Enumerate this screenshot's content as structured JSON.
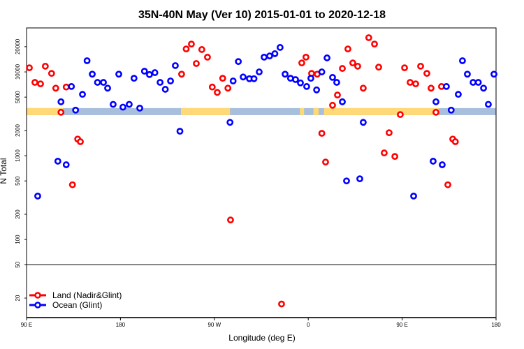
{
  "chart_data": {
    "type": "scatter",
    "title": "35N-40N May (Ver 10)   2015-01-01 to 2020-12-18",
    "xlabel": "Longitude (deg E)",
    "ylabel": "N Total",
    "y_scale": "log",
    "xlim_unwrapped_lon": [
      90,
      540
    ],
    "ylim": [
      11.7,
      33500
    ],
    "x_ticks": [
      {
        "lon": 90,
        "label": "90 E"
      },
      {
        "lon": 180,
        "label": "180"
      },
      {
        "lon": 270,
        "label": "90 W"
      },
      {
        "lon": 360,
        "label": "0"
      },
      {
        "lon": 450,
        "label": "90 E"
      },
      {
        "lon": 540,
        "label": "180"
      }
    ],
    "y_ticks": [
      {
        "value": 20000,
        "label": "20000"
      },
      {
        "value": 10000,
        "label": "10000"
      },
      {
        "value": 5000,
        "label": "5000"
      },
      {
        "value": 2000,
        "label": "2000"
      },
      {
        "value": 1000,
        "label": "1000"
      },
      {
        "value": 500,
        "label": "500"
      },
      {
        "value": 200,
        "label": "200"
      },
      {
        "value": 100,
        "label": "100"
      },
      {
        "value": 50,
        "label": "50"
      },
      {
        "value": 20,
        "label": "20"
      }
    ],
    "panel_break_value": 50,
    "grid": false,
    "legend_position": "bottom-left",
    "land_ocean_band": {
      "N_range": [
        3050,
        3700
      ],
      "ocean_color": "#a7bedc",
      "land_color": "#ffd877",
      "land_segments_lon": [
        [
          90,
          125
        ],
        [
          238,
          285
        ],
        [
          352,
          356
        ],
        [
          365,
          370
        ],
        [
          375,
          485
        ]
      ]
    },
    "series": [
      {
        "name": "Land (Nadir&Glint)",
        "color": "#ff0000",
        "points": [
          [
            92.7,
            11200
          ],
          [
            98,
            7500
          ],
          [
            103.4,
            7200
          ],
          [
            108,
            11700
          ],
          [
            114,
            9600
          ],
          [
            118,
            6400
          ],
          [
            123,
            3300
          ],
          [
            128,
            6600
          ],
          [
            134,
            450
          ],
          [
            139,
            1580
          ],
          [
            141.6,
            1470
          ],
          [
            238.6,
            9400
          ],
          [
            243,
            18800
          ],
          [
            248,
            21500
          ],
          [
            252.7,
            12600
          ],
          [
            258,
            18500
          ],
          [
            263.4,
            15000
          ],
          [
            268,
            6600
          ],
          [
            272.8,
            5700
          ],
          [
            278,
            8400
          ],
          [
            283,
            6400
          ],
          [
            285.5,
            171
          ],
          [
            334.4,
            17
          ],
          [
            353.8,
            12800
          ],
          [
            357.8,
            15000
          ],
          [
            363.2,
            9600
          ],
          [
            368.6,
            9400
          ],
          [
            373,
            1850
          ],
          [
            376.6,
            840
          ],
          [
            383.3,
            4000
          ],
          [
            388,
            5300
          ],
          [
            392.7,
            11000
          ],
          [
            398,
            18800
          ],
          [
            402.7,
            12800
          ],
          [
            407.4,
            11700
          ],
          [
            412.7,
            6400
          ],
          [
            418,
            25600
          ],
          [
            423.5,
            21500
          ],
          [
            427.5,
            11400
          ],
          [
            432.8,
            1080
          ],
          [
            437.5,
            1880
          ],
          [
            443,
            980
          ],
          [
            448.2,
            3100
          ],
          [
            452.3,
            11200
          ],
          [
            457.6,
            7500
          ],
          [
            463,
            7200
          ],
          [
            467.7,
            11700
          ],
          [
            473.7,
            9600
          ],
          [
            477.7,
            6400
          ],
          [
            482.4,
            3300
          ],
          [
            487.7,
            6700
          ],
          [
            493.8,
            450
          ],
          [
            498.5,
            1580
          ],
          [
            501,
            1470
          ]
        ]
      },
      {
        "name": "Ocean (Glint)",
        "color": "#0000ff",
        "points": [
          [
            100.7,
            330
          ],
          [
            120,
            860
          ],
          [
            123,
            4400
          ],
          [
            128,
            780
          ],
          [
            133,
            6700
          ],
          [
            137,
            3500
          ],
          [
            143.6,
            5400
          ],
          [
            148,
            13600
          ],
          [
            153,
            9400
          ],
          [
            158,
            7500
          ],
          [
            163.7,
            7500
          ],
          [
            167.7,
            6400
          ],
          [
            173,
            4100
          ],
          [
            178.4,
            9400
          ],
          [
            182.4,
            3800
          ],
          [
            188.4,
            4100
          ],
          [
            193,
            8400
          ],
          [
            198.5,
            3700
          ],
          [
            203,
            10200
          ],
          [
            207.8,
            9300
          ],
          [
            213,
            9800
          ],
          [
            218,
            7500
          ],
          [
            223,
            6200
          ],
          [
            228,
            7800
          ],
          [
            232.6,
            11900
          ],
          [
            237,
            1960
          ],
          [
            285,
            2500
          ],
          [
            288,
            7800
          ],
          [
            293,
            13300
          ],
          [
            297.6,
            8700
          ],
          [
            303.6,
            8300
          ],
          [
            308,
            8300
          ],
          [
            313,
            10000
          ],
          [
            317.7,
            15000
          ],
          [
            323,
            15500
          ],
          [
            328,
            16500
          ],
          [
            333,
            19600
          ],
          [
            337.8,
            9400
          ],
          [
            343,
            8400
          ],
          [
            347.8,
            8100
          ],
          [
            352.5,
            7400
          ],
          [
            358.5,
            6700
          ],
          [
            362.5,
            8400
          ],
          [
            368,
            6100
          ],
          [
            373,
            10000
          ],
          [
            378,
            14700
          ],
          [
            383.3,
            8600
          ],
          [
            387.3,
            7500
          ],
          [
            392.7,
            4400
          ],
          [
            396.7,
            500
          ],
          [
            409.4,
            530
          ],
          [
            412.7,
            2500
          ],
          [
            461,
            330
          ],
          [
            479.7,
            860
          ],
          [
            482.4,
            4400
          ],
          [
            488.4,
            780
          ],
          [
            492.4,
            6700
          ],
          [
            497,
            3500
          ],
          [
            503.8,
            5400
          ],
          [
            507.8,
            13600
          ],
          [
            512.5,
            9400
          ],
          [
            518,
            7500
          ],
          [
            523,
            7500
          ],
          [
            528,
            6400
          ],
          [
            532.6,
            4100
          ],
          [
            538,
            9400
          ]
        ]
      }
    ]
  }
}
